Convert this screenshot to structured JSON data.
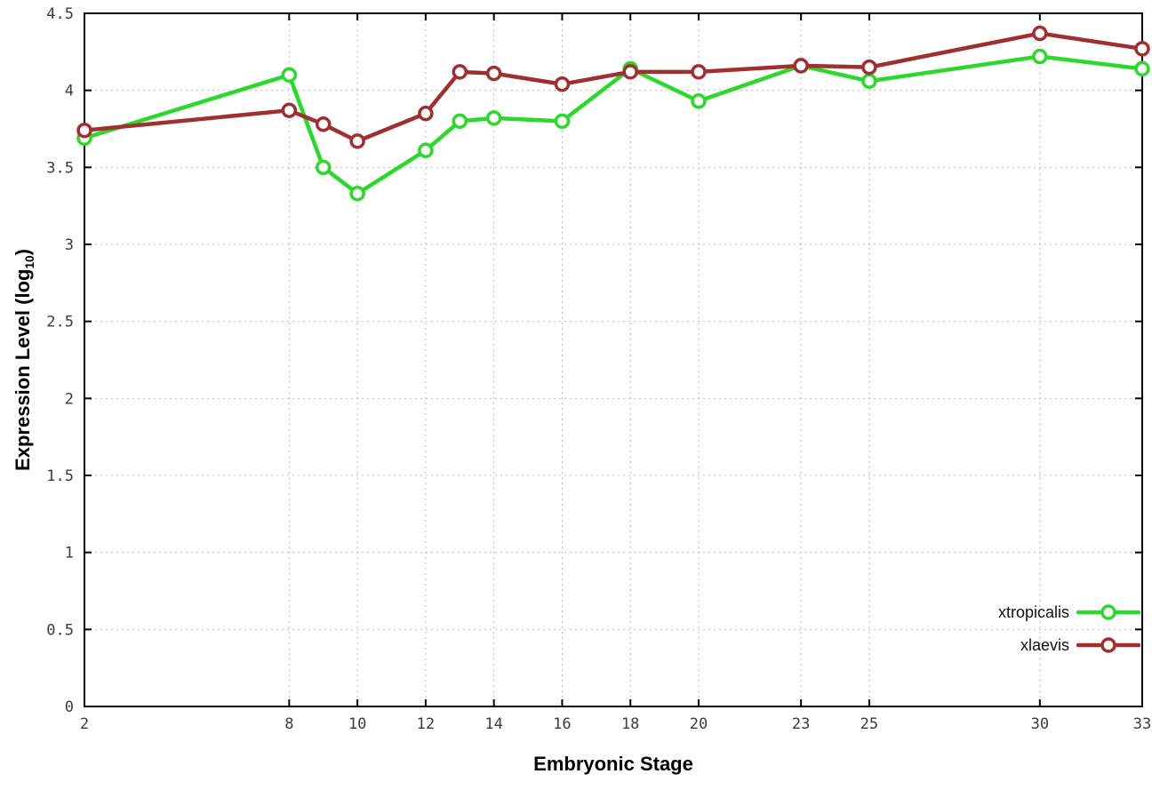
{
  "figure": {
    "background": "#ffffff"
  },
  "axes": {
    "x_title": "Embryonic Stage",
    "y_title_prefix": "Expression Level (log",
    "y_title_sub": "10",
    "y_title_suffix": ")"
  },
  "legend": {
    "position": "bottom-right",
    "items": [
      {
        "label": "xtropicalis",
        "color": "#2cd82c"
      },
      {
        "label": "xlaevis",
        "color": "#a03030"
      }
    ]
  },
  "chart_data": {
    "type": "line",
    "title": "",
    "xlabel": "Embryonic Stage",
    "ylabel": "Expression Level (log10)",
    "x": [
      2,
      8,
      9,
      10,
      12,
      13,
      14,
      16,
      18,
      20,
      23,
      25,
      30,
      33
    ],
    "xticks": [
      2,
      8,
      10,
      12,
      14,
      16,
      18,
      20,
      23,
      25,
      30,
      33
    ],
    "yticks": [
      0,
      0.5,
      1,
      1.5,
      2,
      2.5,
      3,
      3.5,
      4,
      4.5
    ],
    "xlim": [
      2,
      33
    ],
    "ylim": [
      0,
      4.5
    ],
    "grid": true,
    "marker": "open-circle",
    "legend_position": "bottom-right",
    "series": [
      {
        "name": "xtropicalis",
        "color": "#2cd82c",
        "values": [
          3.69,
          4.1,
          3.5,
          3.33,
          3.61,
          3.8,
          3.82,
          3.8,
          4.14,
          3.93,
          4.16,
          4.06,
          4.22,
          4.14
        ]
      },
      {
        "name": "xlaevis",
        "color": "#a03030",
        "values": [
          3.74,
          3.87,
          3.78,
          3.67,
          3.85,
          4.12,
          4.11,
          4.04,
          4.12,
          4.12,
          4.16,
          4.15,
          4.37,
          4.27
        ]
      }
    ]
  }
}
